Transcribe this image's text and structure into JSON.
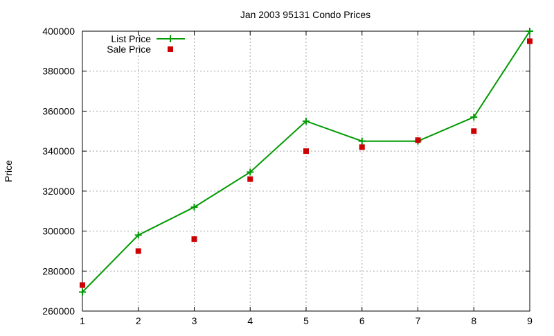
{
  "chart_data": {
    "type": "line",
    "title": "Jan 2003 95131 Condo Prices",
    "xlabel": "",
    "ylabel": "Price",
    "x": [
      1,
      2,
      3,
      4,
      5,
      6,
      7,
      8,
      9
    ],
    "xlim": [
      1,
      9
    ],
    "ylim": [
      260000,
      400000
    ],
    "xticks": [
      "1",
      "2",
      "3",
      "4",
      "5",
      "6",
      "7",
      "8",
      "9"
    ],
    "yticks": [
      "260000",
      "280000",
      "300000",
      "320000",
      "340000",
      "360000",
      "380000",
      "400000"
    ],
    "grid": true,
    "legend_position": "top-left",
    "series": [
      {
        "name": "List Price",
        "style": "line+plus-markers",
        "color": "#009900",
        "values": [
          269500,
          298000,
          312000,
          329500,
          355000,
          345000,
          345000,
          357000,
          400000
        ]
      },
      {
        "name": "Sale Price",
        "style": "square-markers",
        "color": "#cc0000",
        "values": [
          273000,
          290000,
          296000,
          326000,
          340000,
          342000,
          345500,
          350000,
          395000
        ]
      }
    ]
  }
}
